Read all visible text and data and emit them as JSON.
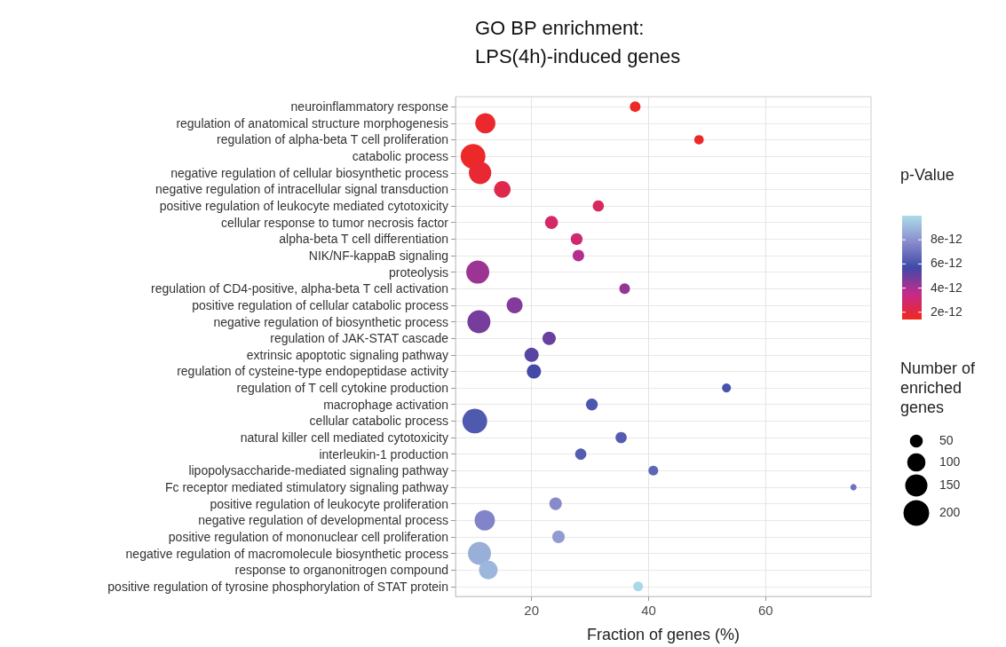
{
  "chart_data": {
    "type": "bubble",
    "title": "GO BP enrichment: LPS(4h)-induced genes",
    "xlabel": "Fraction of genes (%)",
    "clabel": "p-Value",
    "legend_title": "Number of enriched genes",
    "orientation": "horizontal",
    "categories": [
      "neuroinflammatory response",
      "regulation of anatomical structure morphogenesis",
      "regulation of alpha-beta T cell proliferation",
      "catabolic process",
      "negative regulation of cellular biosynthetic process",
      "negative regulation of intracellular signal transduction",
      "positive regulation of leukocyte mediated cytotoxicity",
      "cellular response to tumor necrosis factor",
      "alpha-beta T cell differentiation",
      "NIK/NF-kappaB signaling",
      "proteolysis",
      "regulation of CD4-positive, alpha-beta T cell activation",
      "positive regulation of cellular catabolic process",
      "negative regulation of biosynthetic process",
      "regulation of JAK-STAT cascade",
      "extrinsic apoptotic signaling pathway",
      "regulation of cysteine-type endopeptidase activity",
      "regulation of T cell cytokine production",
      "macrophage activation",
      "cellular catabolic process",
      "natural killer cell mediated cytotoxicity",
      "interleukin-1 production",
      "lipopolysaccharide-mediated signaling pathway",
      "Fc receptor mediated stimulatory signaling pathway",
      "positive regulation of leukocyte proliferation",
      "negative regulation of developmental process",
      "positive regulation of mononuclear cell proliferation",
      "negative regulation of macromolecule biosynthetic process",
      "response to organonitrogen compound",
      "positive regulation of tyrosine phosphorylation of STAT protein"
    ],
    "values": [
      37.7,
      12.1,
      48.6,
      10.0,
      11.2,
      15.0,
      31.4,
      23.4,
      27.7,
      28.0,
      10.8,
      35.9,
      17.1,
      11.0,
      23.0,
      20.0,
      20.4,
      53.3,
      30.3,
      10.3,
      35.3,
      28.4,
      40.8,
      75.0,
      24.1,
      12.0,
      24.6,
      11.1,
      12.6,
      38.2
    ],
    "sizes": [
      34,
      123,
      27,
      186,
      152,
      83,
      38,
      51,
      42,
      40,
      161,
      34,
      77,
      161,
      54,
      61,
      61,
      24,
      42,
      186,
      38,
      38,
      29,
      12,
      47,
      126,
      47,
      161,
      105,
      29
    ],
    "cvalues": [
      1.5e-12,
      1.7e-12,
      1.6e-12,
      1.6e-12,
      1.8e-12,
      2.3e-12,
      2.6e-12,
      2.8e-12,
      3e-12,
      3.8e-12,
      4.2e-12,
      4.3e-12,
      4.6e-12,
      4.8e-12,
      5e-12,
      5.3e-12,
      5.6e-12,
      6e-12,
      6.1e-12,
      6.2e-12,
      6.3e-12,
      6.3e-12,
      6.6e-12,
      7e-12,
      7.8e-12,
      7.6e-12,
      8.3e-12,
      8.8e-12,
      9e-12,
      9.9e-12
    ],
    "size_legend": [
      50,
      100,
      150,
      200
    ],
    "clim": [
      1.4e-12,
      1e-11
    ],
    "cticks": [
      2e-12,
      4e-12,
      6e-12,
      8e-12
    ],
    "xlim": [
      7,
      78
    ],
    "xticks": [
      20,
      40,
      60
    ],
    "grid": true
  }
}
